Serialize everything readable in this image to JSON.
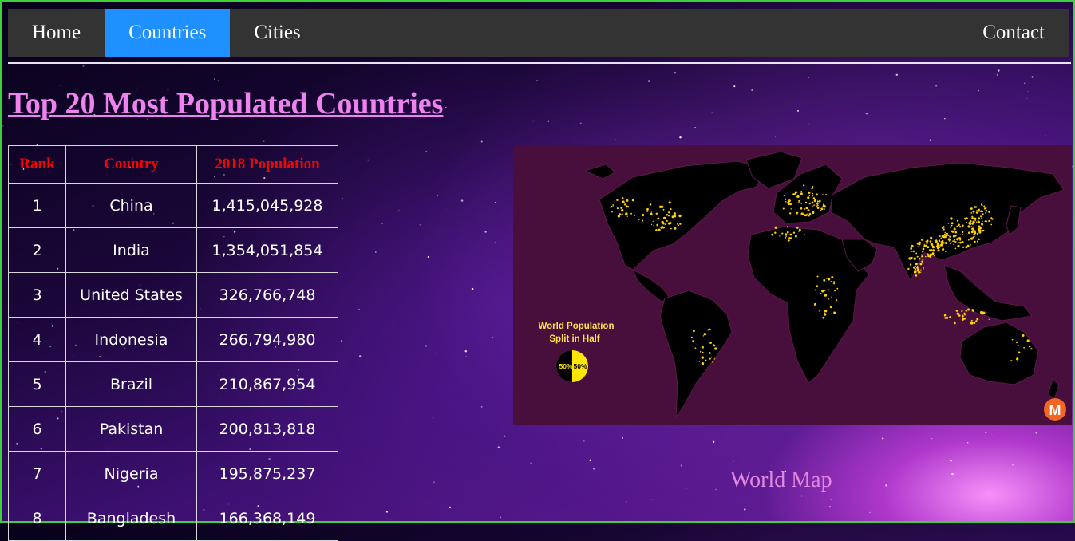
{
  "nav": {
    "items": [
      {
        "label": "Home",
        "active": false
      },
      {
        "label": "Countries",
        "active": true
      },
      {
        "label": "Cities",
        "active": false
      }
    ],
    "contact_label": "Contact",
    "active_color": "#1e90ff"
  },
  "page": {
    "title": "Top 20 Most Populated Countries"
  },
  "table": {
    "headers": [
      "Rank",
      "Country",
      "2018 Population"
    ],
    "rows": [
      [
        "1",
        "China",
        "1,415,045,928"
      ],
      [
        "2",
        "India",
        "1,354,051,854"
      ],
      [
        "3",
        "United States",
        "326,766,748"
      ],
      [
        "4",
        "Indonesia",
        "266,794,980"
      ],
      [
        "5",
        "Brazil",
        "210,867,954"
      ],
      [
        "6",
        "Pakistan",
        "200,813,818"
      ],
      [
        "7",
        "Nigeria",
        "195,875,237"
      ],
      [
        "8",
        "Bangladesh",
        "166,368,149"
      ]
    ]
  },
  "map": {
    "legend_title_line1": "World Population",
    "legend_title_line2": "Split in Half",
    "left_pct": "50%",
    "right_pct": "50%",
    "badge_letter": "M",
    "caption": "World Map"
  }
}
